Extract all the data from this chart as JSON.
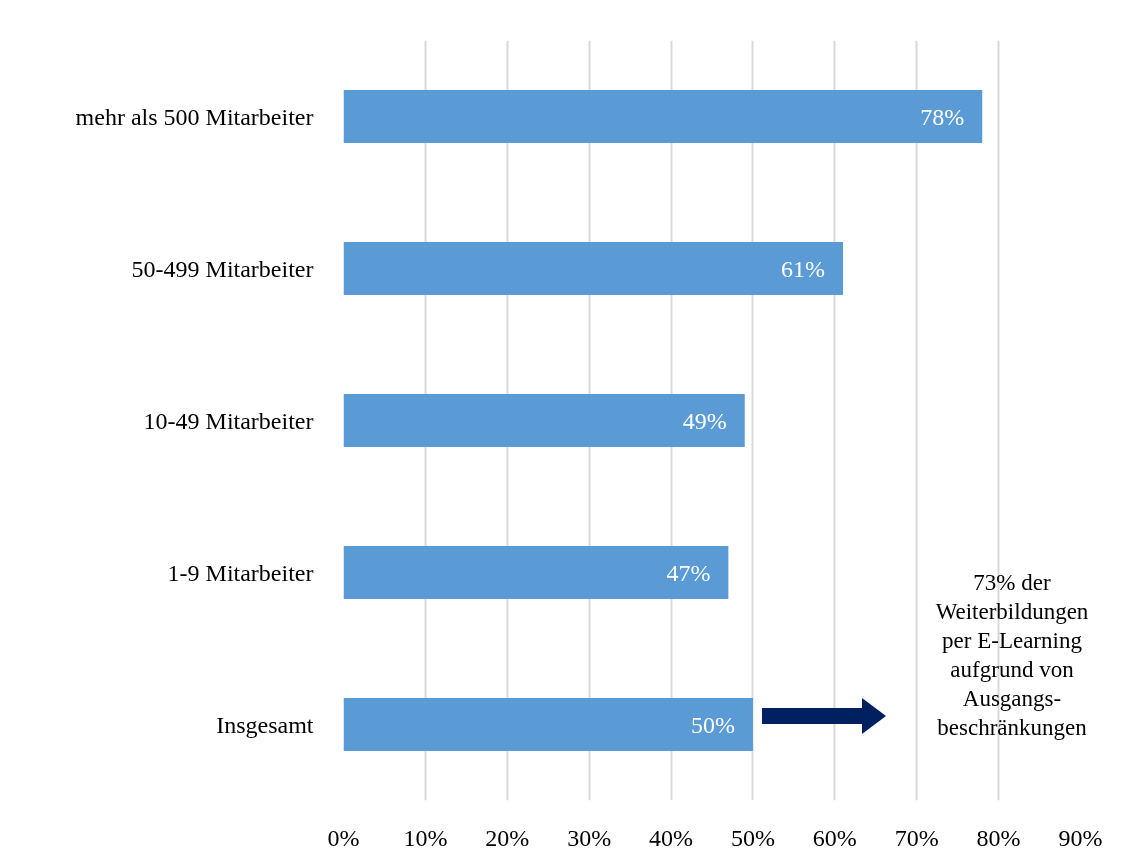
{
  "chart_data": {
    "type": "bar",
    "orientation": "horizontal",
    "categories": [
      "mehr als 500 Mitarbeiter",
      "50-499 Mitarbeiter",
      "10-49 Mitarbeiter",
      "1-9 Mitarbeiter",
      "Insgesamt"
    ],
    "values": [
      78,
      61,
      49,
      47,
      50
    ],
    "value_labels": [
      "78%",
      "61%",
      "49%",
      "47%",
      "50%"
    ],
    "color": "#5b9bd5",
    "xlim": [
      0,
      90
    ],
    "xticks": [
      {
        "value": 0,
        "label": "0%"
      },
      {
        "value": 10,
        "label": "10%"
      },
      {
        "value": 20,
        "label": "20%"
      },
      {
        "value": 30,
        "label": "30%"
      },
      {
        "value": 40,
        "label": "40%"
      },
      {
        "value": 50,
        "label": "50%"
      },
      {
        "value": 60,
        "label": "60%"
      },
      {
        "value": 70,
        "label": "70%"
      },
      {
        "value": 80,
        "label": "80%"
      },
      {
        "value": 90,
        "label": "90%"
      }
    ],
    "grid": "x",
    "annotations": [
      "73% der\nWeiterbildungen\nper E-Learning\naufgrund von\nAusgangs-\nbeschränkungen"
    ]
  }
}
